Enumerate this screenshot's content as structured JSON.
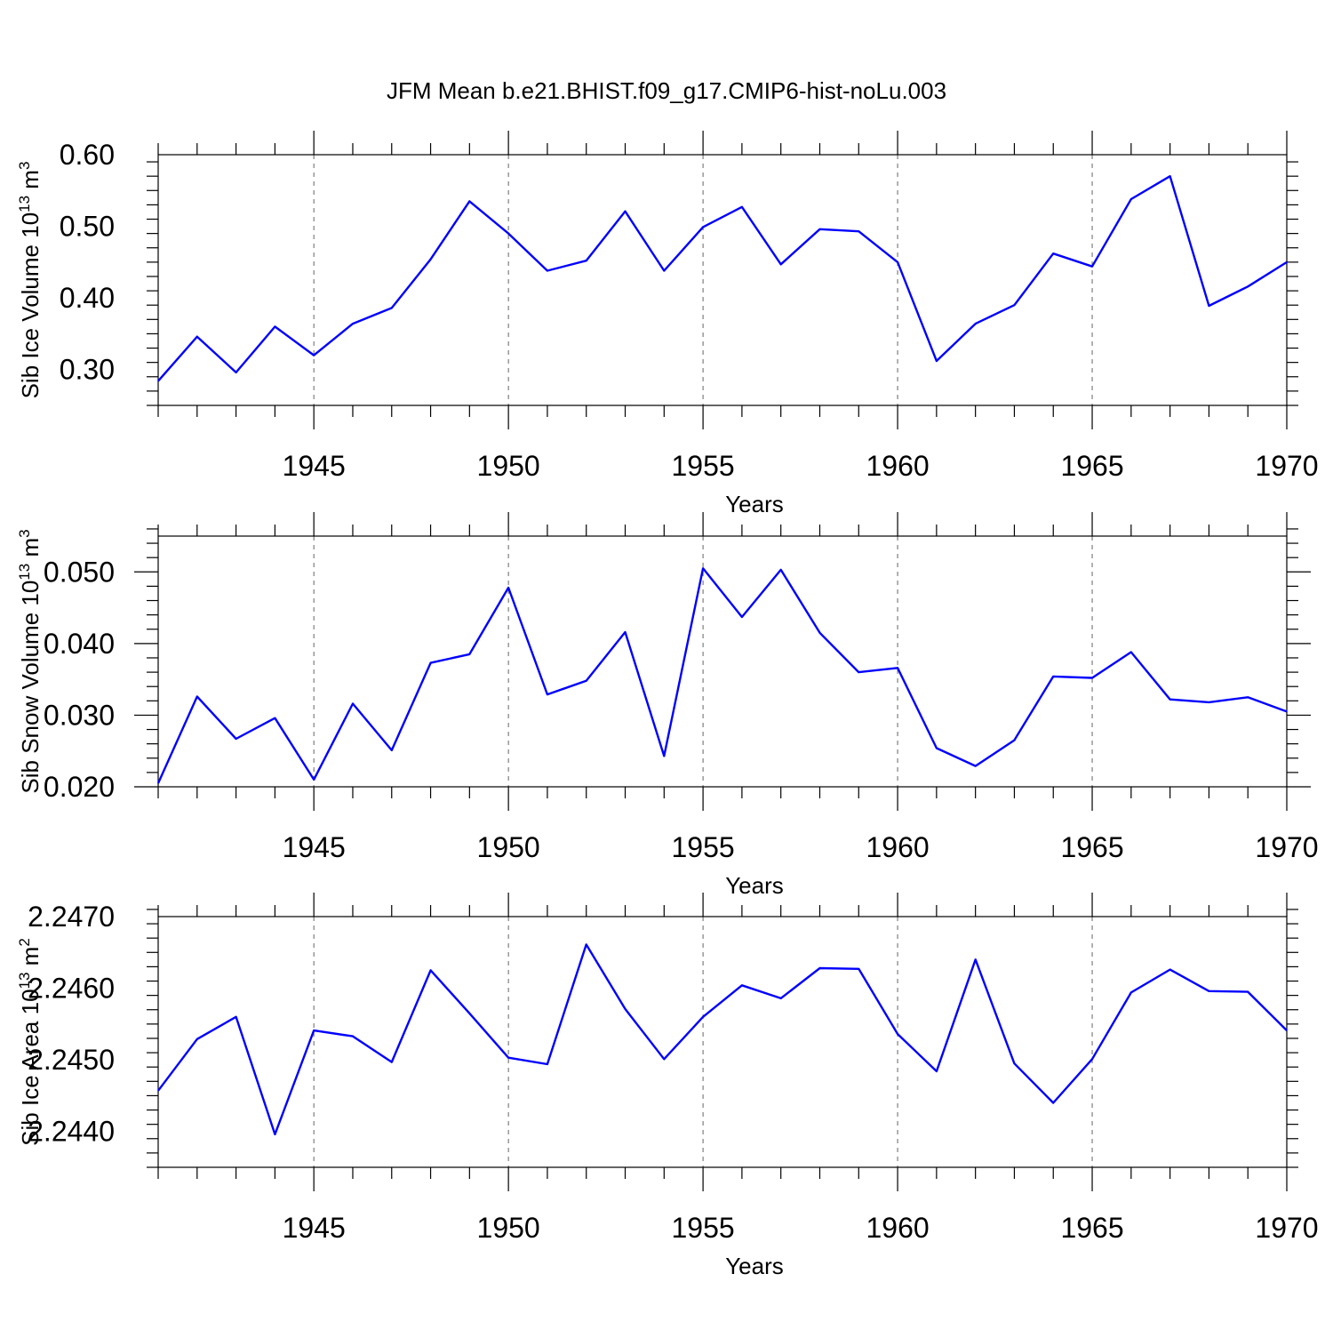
{
  "title": "JFM Mean b.e21.BHIST.f09_g17.CMIP6-hist-noLu.003",
  "colors": {
    "series": "#0000ff",
    "axes": "#000000",
    "background": "#ffffff"
  },
  "chart_data": [
    {
      "type": "line",
      "xlabel": "Years",
      "ylabel": {
        "main": "Sib Ice Volume 10",
        "sup1": "13",
        "mid": " m",
        "sup2": "3"
      },
      "xlim": [
        1941,
        1970
      ],
      "ylim": [
        0.25,
        0.6
      ],
      "grid": "dashed vertical at major x ticks",
      "x_ticks": [
        1945,
        1950,
        1955,
        1960,
        1965,
        1970
      ],
      "y_ticks": [
        0.3,
        0.4,
        0.5,
        0.6
      ],
      "y_tick_labels": [
        "0.30",
        "0.40",
        "0.50",
        "0.60"
      ],
      "x": [
        1941,
        1942,
        1943,
        1944,
        1945,
        1946,
        1947,
        1948,
        1949,
        1950,
        1951,
        1952,
        1953,
        1954,
        1955,
        1956,
        1957,
        1958,
        1959,
        1960,
        1961,
        1962,
        1963,
        1964,
        1965,
        1966,
        1967,
        1968,
        1969,
        1970
      ],
      "values": [
        0.284,
        0.346,
        0.296,
        0.36,
        0.32,
        0.364,
        0.386,
        0.454,
        0.535,
        0.49,
        0.438,
        0.452,
        0.521,
        0.438,
        0.499,
        0.527,
        0.447,
        0.496,
        0.493,
        0.45,
        0.312,
        0.364,
        0.39,
        0.462,
        0.444,
        0.538,
        0.57,
        0.389,
        0.416,
        0.45
      ]
    },
    {
      "type": "line",
      "xlabel": "Years",
      "ylabel": {
        "main": "Sib Snow Volume 10",
        "sup1": "13",
        "mid": " m",
        "sup2": "3"
      },
      "xlim": [
        1941,
        1970
      ],
      "ylim": [
        0.02,
        0.055
      ],
      "grid": "dashed vertical at major x ticks",
      "x_ticks": [
        1945,
        1950,
        1955,
        1960,
        1965,
        1970
      ],
      "y_ticks": [
        0.02,
        0.03,
        0.04,
        0.05
      ],
      "y_tick_labels": [
        "0.020",
        "0.030",
        "0.040",
        "0.050"
      ],
      "x": [
        1941,
        1942,
        1943,
        1944,
        1945,
        1946,
        1947,
        1948,
        1949,
        1950,
        1951,
        1952,
        1953,
        1954,
        1955,
        1956,
        1957,
        1958,
        1959,
        1960,
        1961,
        1962,
        1963,
        1964,
        1965,
        1966,
        1967,
        1968,
        1969,
        1970
      ],
      "values": [
        0.0205,
        0.0326,
        0.0267,
        0.0296,
        0.021,
        0.0316,
        0.0251,
        0.0373,
        0.0385,
        0.0478,
        0.0329,
        0.0348,
        0.0416,
        0.0243,
        0.0505,
        0.0437,
        0.0503,
        0.0415,
        0.036,
        0.0366,
        0.0254,
        0.0229,
        0.0265,
        0.0354,
        0.0352,
        0.0388,
        0.0322,
        0.0318,
        0.0325,
        0.0305
      ]
    },
    {
      "type": "line",
      "xlabel": "Years",
      "ylabel": {
        "main": "Sib Ice Area 10",
        "sup1": "13",
        "mid": " m",
        "sup2": "2"
      },
      "xlim": [
        1941,
        1970
      ],
      "ylim": [
        2.2435,
        2.247
      ],
      "grid": "dashed vertical at major x ticks",
      "x_ticks": [
        1945,
        1950,
        1955,
        1960,
        1965,
        1970
      ],
      "y_ticks": [
        2.244,
        2.245,
        2.246,
        2.247
      ],
      "y_tick_labels": [
        "2.2440",
        "2.2450",
        "2.2460",
        "2.2470"
      ],
      "x": [
        1941,
        1942,
        1943,
        1944,
        1945,
        1946,
        1947,
        1948,
        1949,
        1950,
        1951,
        1952,
        1953,
        1954,
        1955,
        1956,
        1957,
        1958,
        1959,
        1960,
        1961,
        1962,
        1963,
        1964,
        1965,
        1966,
        1967,
        1968,
        1969,
        1970
      ],
      "values": [
        2.24457,
        2.24529,
        2.2456,
        2.24396,
        2.24541,
        2.24533,
        2.24497,
        2.24625,
        2.24565,
        2.24503,
        2.24494,
        2.24661,
        2.24571,
        2.24501,
        2.2456,
        2.24604,
        2.24586,
        2.24628,
        2.24627,
        2.24536,
        2.24484,
        2.2464,
        2.24495,
        2.2444,
        2.24501,
        2.24594,
        2.24626,
        2.24596,
        2.24595,
        2.24541
      ]
    }
  ]
}
